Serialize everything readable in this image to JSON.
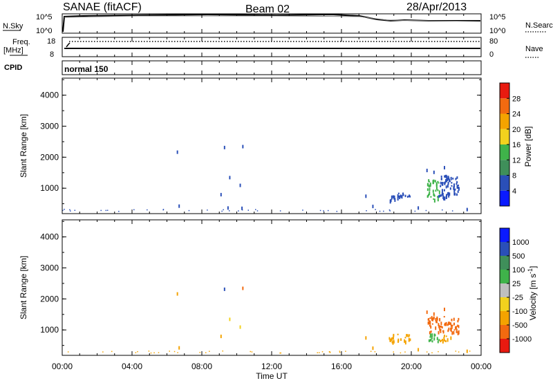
{
  "header": {
    "title": "SANAE (fitACF)",
    "beam": "Beam 02",
    "date": "28/Apr/2013"
  },
  "top_panel": {
    "left_label": "N.Sky",
    "left_tick_top": "10^5",
    "left_tick_bottom": "10^0",
    "right_tick_top": "10^5",
    "right_tick_bottom": "10^0",
    "right_label": "N.Search"
  },
  "freq_panel": {
    "label_line1": "Freq.",
    "label_line2": "[MHz]",
    "left_ticks": [
      "18",
      "8"
    ],
    "right_ticks": [
      "80",
      "0"
    ],
    "right_label": "Nave"
  },
  "cpid_panel": {
    "label": "CPID",
    "mode": "normal 150"
  },
  "colors": {
    "power": [
      "#0a1aff",
      "#2a4fb8",
      "#3f8f5a",
      "#3fb34a",
      "#f2d21e",
      "#f4a300",
      "#f26a10",
      "#e81a10"
    ],
    "velocity": [
      "#e81a10",
      "#f26a10",
      "#f4a300",
      "#f2d21e",
      "#bfbfbf",
      "#3fb34a",
      "#3f8f5a",
      "#2a4fb8",
      "#0a1aff"
    ]
  },
  "chart_data": [
    {
      "type": "heatmap",
      "name": "power",
      "ylabel": "Slant Range [km]",
      "y_ticks": [
        "1000",
        "2000",
        "3000",
        "4000"
      ],
      "ylim": [
        180,
        4550
      ],
      "xlim_hours": [
        0,
        24
      ],
      "colorbar_label": "Power [dB]",
      "colorbar_ticks": [
        "4",
        "8",
        "12",
        "16",
        "20",
        "24",
        "28"
      ],
      "colorbar_range": [
        0,
        32
      ],
      "scatter": [
        {
          "t": 6.6,
          "r": 2150,
          "v": 6
        },
        {
          "t": 9.3,
          "r": 2300,
          "v": 6
        },
        {
          "t": 10.35,
          "r": 2330,
          "v": 6
        },
        {
          "t": 9.6,
          "r": 1330,
          "v": 6
        },
        {
          "t": 10.2,
          "r": 1080,
          "v": 6
        },
        {
          "t": 9.1,
          "r": 780,
          "v": 6
        },
        {
          "t": 6.7,
          "r": 410,
          "v": 6
        },
        {
          "t": 9.5,
          "r": 350,
          "v": 6
        },
        {
          "t": 10.3,
          "r": 340,
          "v": 6
        },
        {
          "t": 17.4,
          "r": 730,
          "v": 6
        },
        {
          "t": 17.8,
          "r": 400,
          "v": 6
        },
        {
          "t": 20.9,
          "r": 1560,
          "v": 6
        },
        {
          "t": 21.3,
          "r": 1500,
          "v": 6
        },
        {
          "t": 21.9,
          "r": 1650,
          "v": 6
        },
        {
          "t": 20.4,
          "r": 350,
          "v": 6
        },
        {
          "t": 23.2,
          "r": 300,
          "v": 6
        }
      ],
      "patches": [
        {
          "t0": 18.7,
          "t1": 19.9,
          "r0": 620,
          "r1": 880,
          "v": 6
        },
        {
          "t0": 20.9,
          "t1": 21.6,
          "r0": 900,
          "r1": 1300,
          "v": 12
        },
        {
          "t0": 21.6,
          "t1": 22.7,
          "r0": 800,
          "r1": 1450,
          "v": 6
        },
        {
          "t0": 20.9,
          "t1": 21.5,
          "r0": 650,
          "r1": 900,
          "v": 14
        },
        {
          "t0": 21.5,
          "t1": 22.2,
          "r0": 650,
          "r1": 820,
          "v": 6
        }
      ]
    },
    {
      "type": "heatmap",
      "name": "velocity",
      "ylabel": "Slant Range [km]",
      "y_ticks": [
        "1000",
        "2000",
        "3000",
        "4000"
      ],
      "ylim": [
        180,
        4550
      ],
      "xlim_hours": [
        0,
        24
      ],
      "xlabel": "Time UT",
      "x_ticks": [
        "00:00",
        "04:00",
        "08:00",
        "12:00",
        "16:00",
        "20:00",
        "00:00"
      ],
      "colorbar_label": "Velocity [m s^-1]",
      "colorbar_ticks": [
        "-1000",
        "-500",
        "-100",
        "-25",
        "25",
        "100",
        "500",
        "1000"
      ],
      "scatter": [
        {
          "t": 6.6,
          "r": 2150,
          "v": -300
        },
        {
          "t": 9.3,
          "r": 2300,
          "v": 600
        },
        {
          "t": 10.35,
          "r": 2330,
          "v": -500
        },
        {
          "t": 9.6,
          "r": 1330,
          "v": -50
        },
        {
          "t": 10.2,
          "r": 1080,
          "v": -50
        },
        {
          "t": 9.1,
          "r": 780,
          "v": -100
        },
        {
          "t": 6.7,
          "r": 410,
          "v": -100
        },
        {
          "t": 17.4,
          "r": 730,
          "v": -100
        },
        {
          "t": 17.8,
          "r": 400,
          "v": -100
        },
        {
          "t": 20.9,
          "r": 1560,
          "v": -600
        },
        {
          "t": 21.3,
          "r": 1500,
          "v": -600
        },
        {
          "t": 21.9,
          "r": 1650,
          "v": -600
        },
        {
          "t": 20.4,
          "r": 350,
          "v": -100
        },
        {
          "t": 23.2,
          "r": 300,
          "v": -100
        }
      ],
      "patches": [
        {
          "t0": 18.7,
          "t1": 19.9,
          "r0": 620,
          "r1": 880,
          "v": -100
        },
        {
          "t0": 20.9,
          "t1": 22.7,
          "r0": 950,
          "r1": 1450,
          "v": -600
        },
        {
          "t0": 20.9,
          "t1": 21.6,
          "r0": 650,
          "r1": 900,
          "v": 100
        },
        {
          "t0": 21.6,
          "t1": 22.3,
          "r0": 650,
          "r1": 850,
          "v": -100
        }
      ]
    }
  ]
}
